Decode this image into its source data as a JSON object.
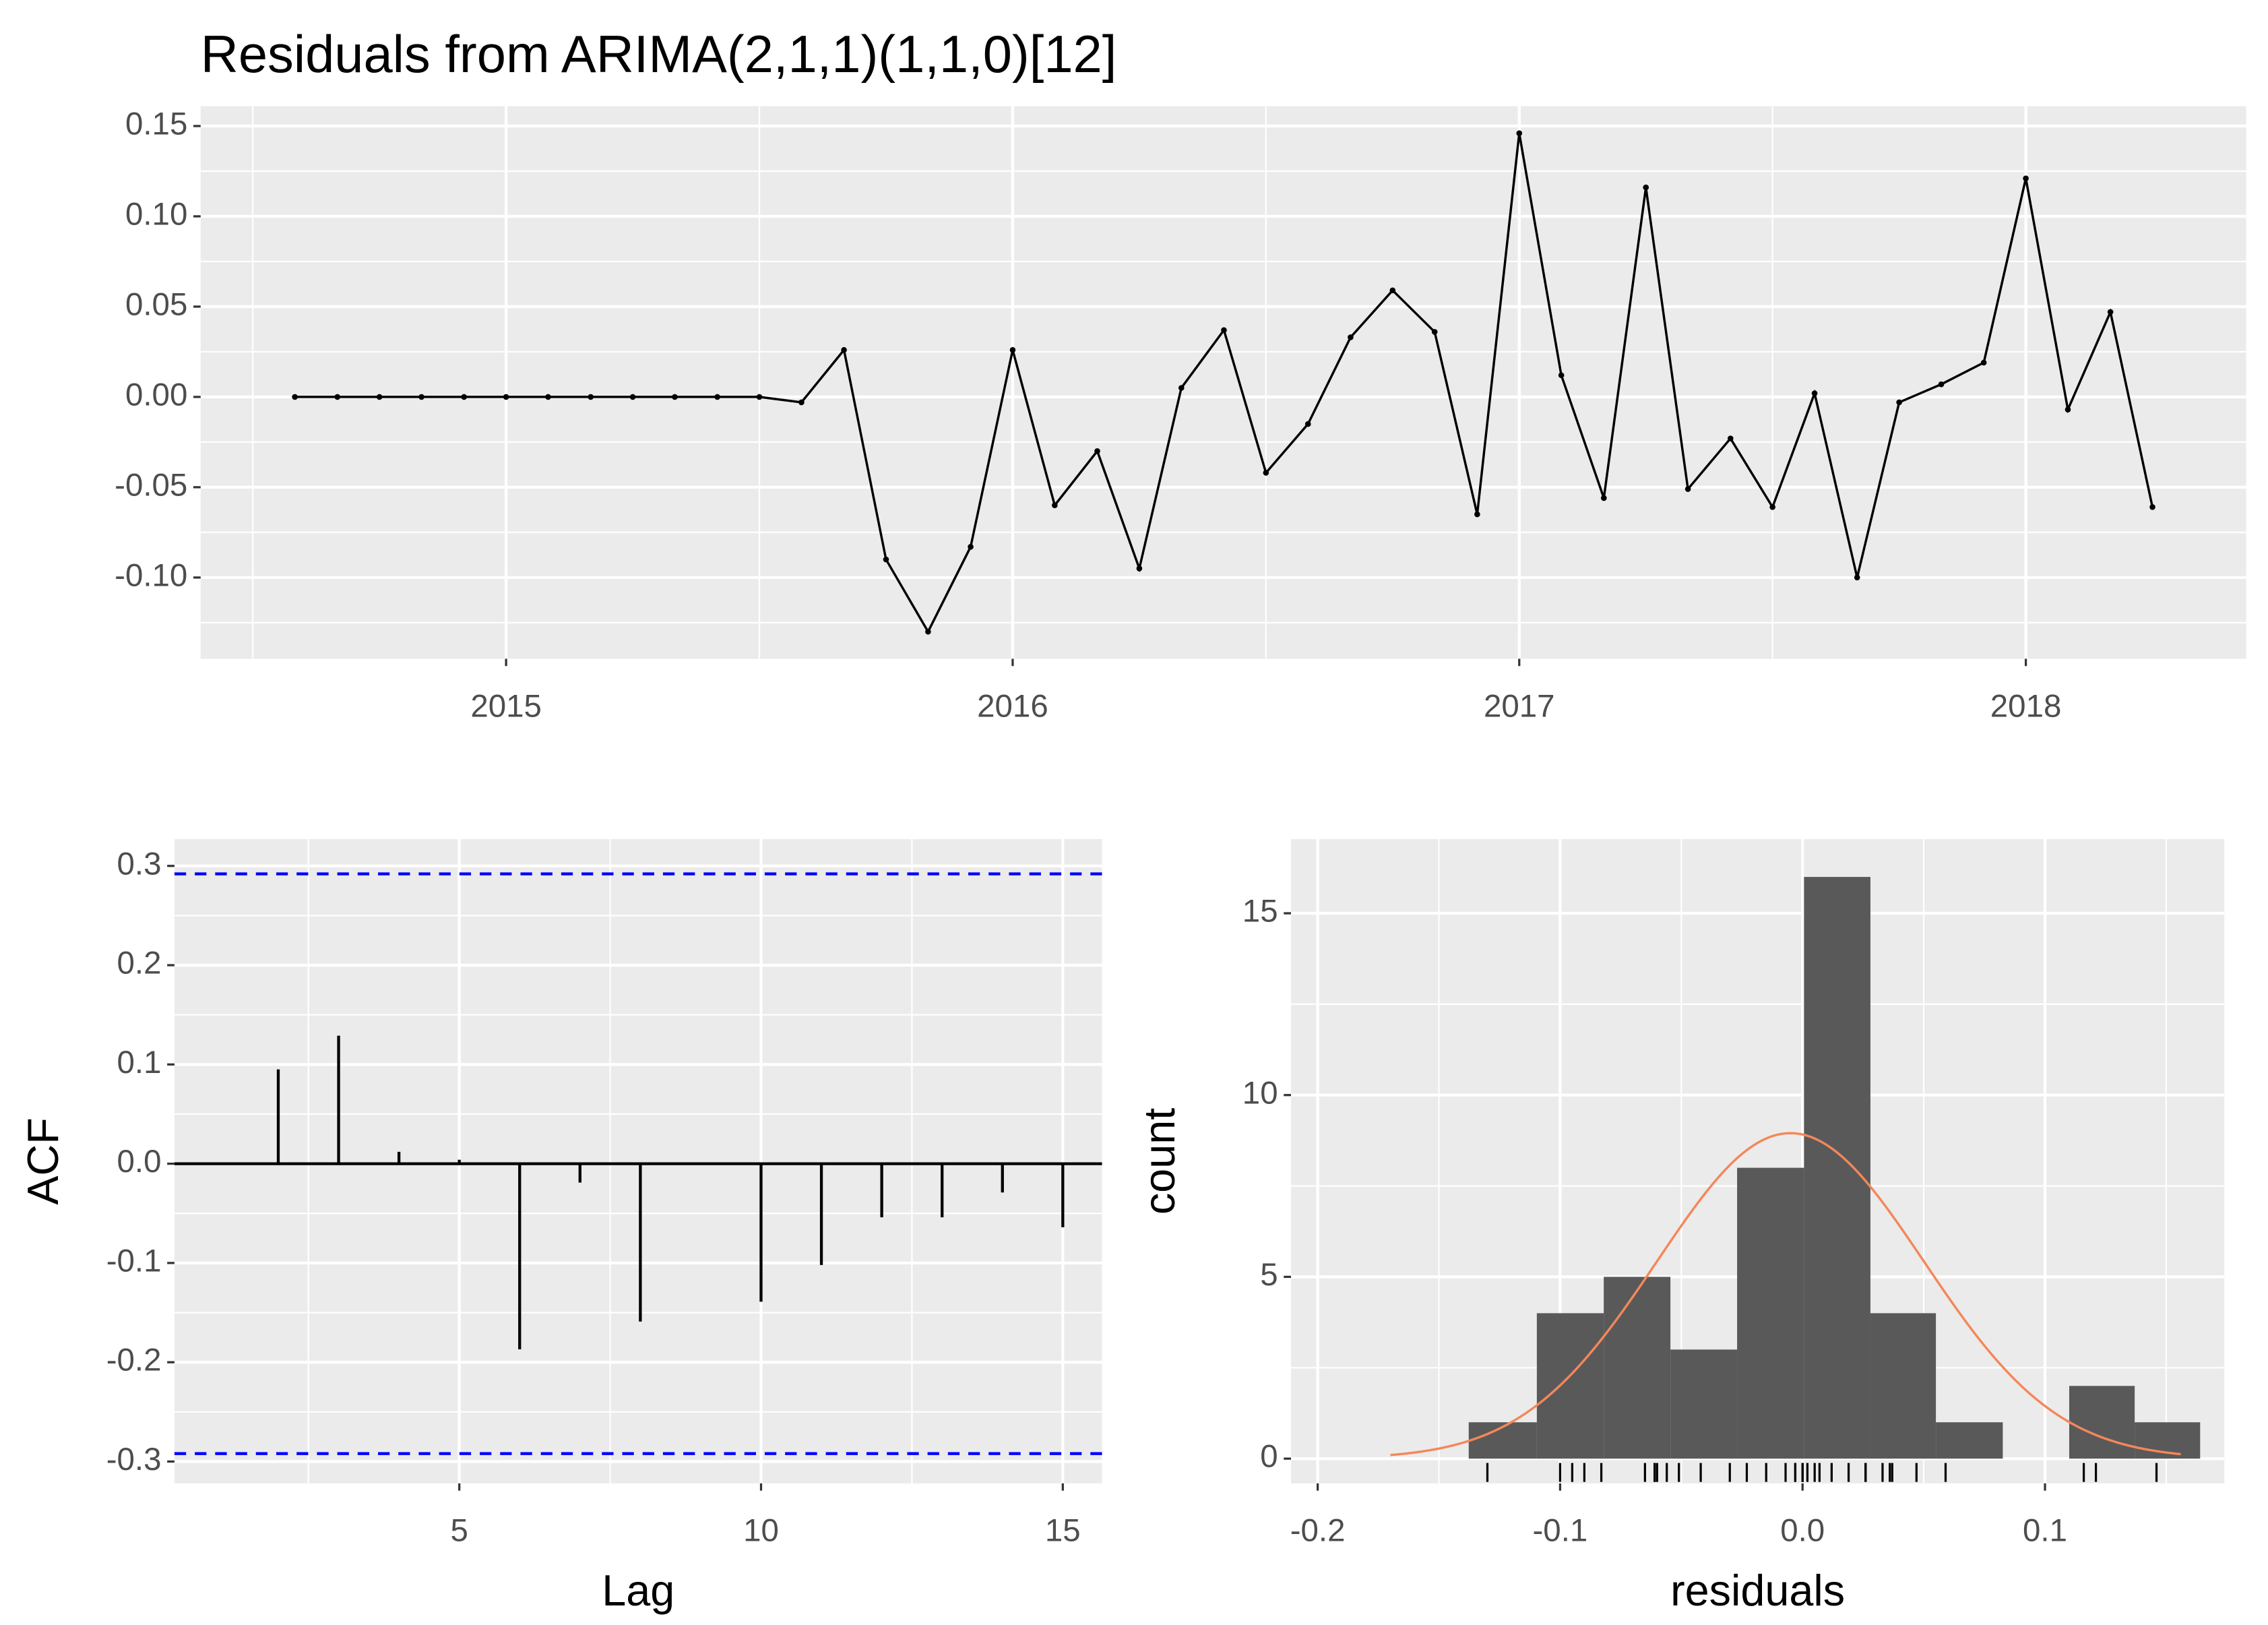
{
  "chart_data": [
    {
      "type": "line",
      "title": "Residuals from ARIMA(2,1,1)(1,1,0)[12]",
      "x": [
        2014.583,
        2014.667,
        2014.75,
        2014.833,
        2014.917,
        2015.0,
        2015.083,
        2015.167,
        2015.25,
        2015.333,
        2015.417,
        2015.5,
        2015.583,
        2015.667,
        2015.75,
        2015.833,
        2015.917,
        2016.0,
        2016.083,
        2016.167,
        2016.25,
        2016.333,
        2016.417,
        2016.5,
        2016.583,
        2016.667,
        2016.75,
        2016.833,
        2016.917,
        2017.0,
        2017.083,
        2017.167,
        2017.25,
        2017.333,
        2017.417,
        2017.5,
        2017.583,
        2017.667,
        2017.75,
        2017.833,
        2017.917,
        2018.0,
        2018.083,
        2018.167,
        2018.25
      ],
      "values": [
        0,
        0,
        0,
        0,
        0,
        0,
        0,
        0,
        0,
        0,
        0,
        0,
        -0.003,
        0.026,
        -0.09,
        -0.13,
        -0.083,
        0.026,
        -0.06,
        -0.03,
        -0.095,
        0.005,
        0.037,
        -0.042,
        -0.015,
        0.033,
        0.059,
        0.036,
        -0.065,
        0.146,
        0.012,
        -0.056,
        0.116,
        -0.051,
        -0.023,
        -0.061,
        0.002,
        -0.1,
        -0.003,
        0.007,
        0.019,
        0.121,
        -0.007,
        0.047,
        -0.061
      ],
      "color": "#000000",
      "xlim": [
        2014.397,
        2018.435
      ],
      "xticks": [
        2015,
        2016,
        2017,
        2018
      ],
      "ylim": [
        -0.145,
        0.161
      ],
      "yticks": [
        {
          "value": -0.1,
          "label": "-0.10"
        },
        -0.05,
        {
          "value": 0,
          "label": "0.00"
        },
        0.05,
        {
          "value": 0.1,
          "label": "0.10"
        },
        0.15
      ],
      "grid": true
    },
    {
      "type": "bar",
      "x": [
        1,
        2,
        3,
        4,
        5,
        6,
        7,
        8,
        9,
        10,
        11,
        12,
        13,
        14,
        15
      ],
      "values": [
        0,
        0.095,
        0.129,
        0.012,
        0.004,
        -0.187,
        -0.019,
        -0.159,
        0,
        -0.139,
        -0.102,
        -0.054,
        -0.054,
        -0.029,
        -0.064
      ],
      "color": "#000000",
      "x_label": "Lag",
      "y_label": "ACF",
      "ci_lines": [
        0.292,
        -0.292
      ],
      "ci_color": "#0000ff",
      "xlim": [
        0.28,
        15.65
      ],
      "xticks": [
        5,
        10,
        15
      ],
      "ylim": [
        -0.322,
        0.327
      ],
      "yticks": [
        -0.3,
        -0.2,
        -0.1,
        {
          "value": 0,
          "label": "0.0"
        },
        0.1,
        0.2,
        0.3
      ],
      "grid": true
    },
    {
      "type": "histogram",
      "bins": [
        -0.1377,
        -0.1096,
        -0.082,
        -0.0545,
        -0.027,
        0.0006,
        0.028,
        0.055,
        0.0826,
        0.11,
        0.137,
        0.164
      ],
      "counts": [
        1,
        4,
        5,
        3,
        8,
        16,
        4,
        1,
        0,
        2,
        1
      ],
      "color": "#595959",
      "x_label": "residuals",
      "y_label": "count",
      "curve": {
        "mean": -0.005,
        "sd": 0.055,
        "range": [
          -0.17,
          0.156
        ],
        "color": "#f4875a"
      },
      "xlim": [
        -0.211,
        0.174
      ],
      "xticks": [
        -0.2,
        -0.1,
        {
          "value": 0,
          "label": "0.0"
        },
        0.1
      ],
      "ylim": [
        -0.68,
        17.04
      ],
      "yticks": [
        0,
        5,
        10,
        15
      ],
      "grid": true
    }
  ]
}
